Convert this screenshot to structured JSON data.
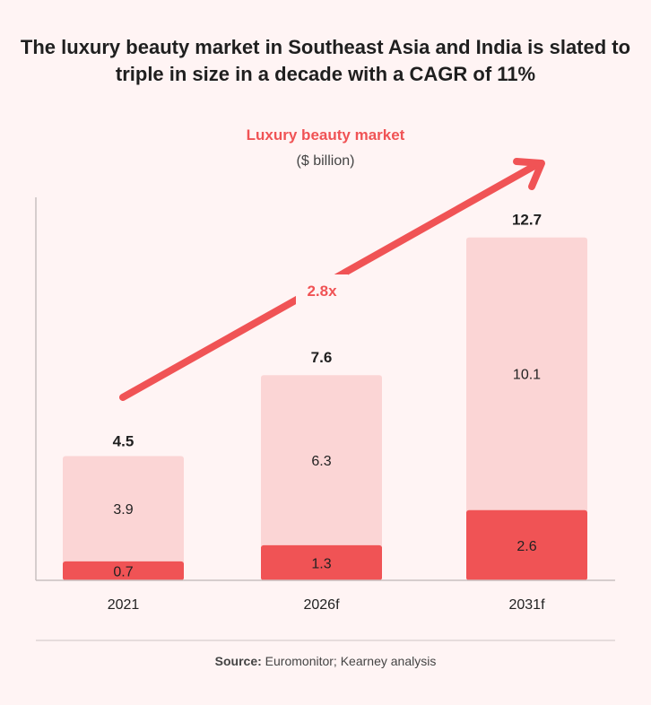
{
  "title": "The luxury beauty market in Southeast Asia and India is slated to triple in size in a decade with a CAGR of 11%",
  "chart_data": {
    "type": "bar",
    "stacked": true,
    "title": "Luxury beauty market",
    "subtitle": "($ billion)",
    "categories": [
      "2021",
      "2026f",
      "2031f"
    ],
    "series": [
      {
        "values": [
          0.7,
          1.3,
          2.6
        ],
        "color": "#f05355"
      },
      {
        "values": [
          3.9,
          6.3,
          10.1
        ],
        "color": "#fbd5d5"
      }
    ],
    "totals": [
      4.5,
      7.6,
      12.7
    ],
    "annotation": "2.8x",
    "ylim": [
      0,
      14
    ],
    "grid": false
  },
  "source_label": "Source:",
  "source_text": "Euromonitor; Kearney analysis"
}
